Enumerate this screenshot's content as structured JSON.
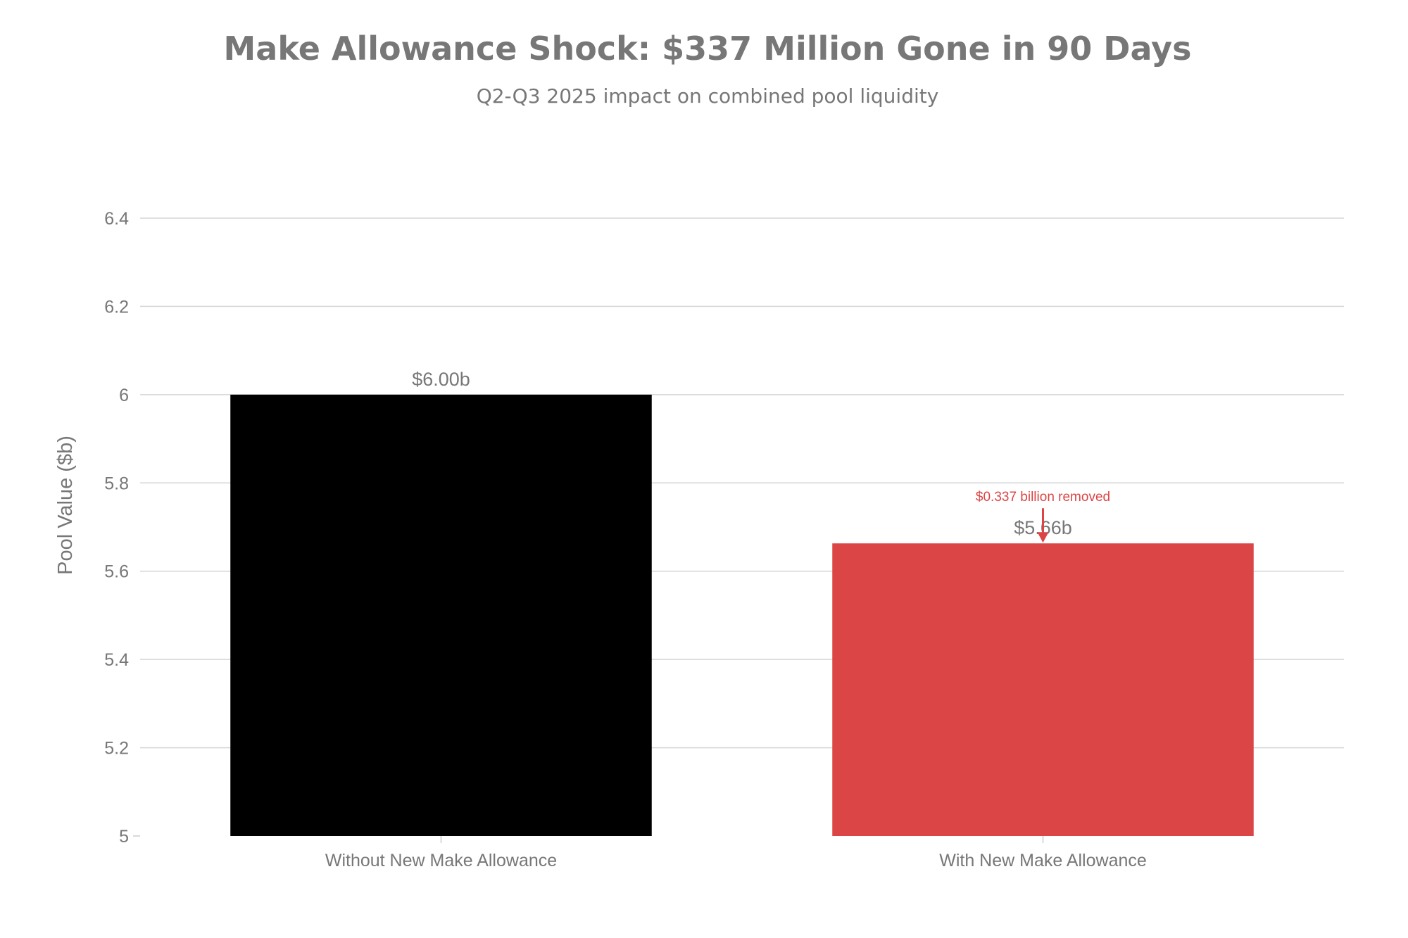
{
  "chart_data": {
    "type": "bar",
    "title": "Make Allowance Shock: $337 Million Gone in 90 Days",
    "subtitle": "Q2-Q3 2025 impact on combined pool liquidity",
    "xlabel": "",
    "ylabel": "Pool Value ($b)",
    "ylim": [
      5,
      6.4
    ],
    "yticks": [
      5,
      5.2,
      5.4,
      5.6,
      5.8,
      6,
      6.2,
      6.4
    ],
    "ytick_labels": [
      "5",
      "5.2",
      "5.4",
      "5.6",
      "5.8",
      "6",
      "6.2",
      "6.4"
    ],
    "grid": true,
    "categories": [
      "Without New Make Allowance",
      "With New Make Allowance"
    ],
    "values": [
      6.0,
      5.663
    ],
    "data_labels": [
      "$6.00b",
      "$5.66b"
    ],
    "colors": [
      "#000000",
      "#DB4545"
    ],
    "annotation": {
      "text": "$0.337 billion removed",
      "category": "With New Make Allowance",
      "color": "#DB4545"
    }
  }
}
